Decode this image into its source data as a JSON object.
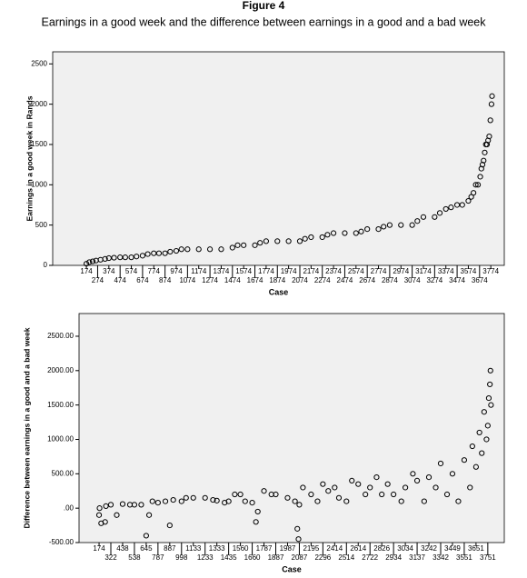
{
  "title": "Figure 4",
  "subtitle": "Earnings in a good week and the difference between earnings in a good and a bad week",
  "chart_data": [
    {
      "type": "scatter",
      "y_label": "Earnings in a good week in Rands",
      "x_label": "Case",
      "marker": "open-circle",
      "color": "#000000",
      "background": "#f0f0f0",
      "xlim": [
        -126,
        3894
      ],
      "ylim": [
        0,
        2650
      ],
      "xticks": [
        174,
        274,
        374,
        474,
        574,
        674,
        774,
        874,
        974,
        1074,
        1174,
        1274,
        1374,
        1474,
        1574,
        1674,
        1774,
        1874,
        1974,
        2074,
        2174,
        2274,
        2374,
        2474,
        2574,
        2674,
        2774,
        2874,
        2974,
        3074,
        3174,
        3274,
        3374,
        3474,
        3574,
        3674,
        3774
      ],
      "yticks": [
        0,
        500,
        1000,
        1500,
        2000,
        2500
      ],
      "x": [
        174,
        200,
        230,
        260,
        300,
        340,
        374,
        420,
        474,
        520,
        574,
        620,
        674,
        720,
        774,
        820,
        874,
        920,
        974,
        1020,
        1074,
        1174,
        1274,
        1374,
        1474,
        1520,
        1574,
        1674,
        1720,
        1774,
        1874,
        1974,
        2074,
        2120,
        2174,
        2274,
        2320,
        2374,
        2474,
        2574,
        2620,
        2674,
        2774,
        2820,
        2874,
        2974,
        3074,
        3120,
        3174,
        3274,
        3320,
        3374,
        3420,
        3474,
        3520,
        3574,
        3600,
        3620,
        3640,
        3660,
        3680,
        3690,
        3700,
        3710,
        3720,
        3730,
        3740,
        3750,
        3760,
        3770,
        3780,
        3785
      ],
      "values": [
        20,
        40,
        50,
        60,
        70,
        80,
        90,
        95,
        100,
        100,
        100,
        110,
        120,
        140,
        150,
        150,
        150,
        170,
        180,
        200,
        200,
        200,
        200,
        200,
        220,
        250,
        250,
        250,
        280,
        300,
        300,
        300,
        300,
        330,
        350,
        350,
        380,
        400,
        400,
        400,
        420,
        450,
        450,
        480,
        500,
        500,
        500,
        550,
        600,
        600,
        650,
        700,
        720,
        750,
        750,
        800,
        850,
        900,
        1000,
        1000,
        1100,
        1200,
        1250,
        1300,
        1400,
        1500,
        1500,
        1550,
        1600,
        1800,
        2000,
        2100
      ]
    },
    {
      "type": "scatter",
      "y_label": "Difference between earnings in a good and a bad week",
      "x_label": "Case",
      "marker": "open-circle",
      "color": "#000000",
      "background": "#f0f0f0",
      "xlim": [
        0,
        3900
      ],
      "ylim": [
        -500,
        2830
      ],
      "xticks": [
        174,
        322,
        438,
        538,
        645,
        787,
        887,
        998,
        1133,
        1233,
        1333,
        1435,
        1560,
        1660,
        1787,
        1887,
        1987,
        2087,
        2195,
        2296,
        2414,
        2514,
        2614,
        2722,
        2826,
        2934,
        3034,
        3137,
        3242,
        3342,
        3449,
        3551,
        3651,
        3751
      ],
      "yticks": [
        {
          "value": -500,
          "label": "-500.00"
        },
        {
          "value": 0,
          "label": ".00"
        },
        {
          "value": 500,
          "label": "500.00"
        },
        {
          "value": 1000,
          "label": "1000.00"
        },
        {
          "value": 1500,
          "label": "1500.00"
        },
        {
          "value": 2000,
          "label": "2000.00"
        },
        {
          "value": 2500,
          "label": "2500.00"
        }
      ],
      "x": [
        174,
        180,
        200,
        250,
        260,
        322,
        380,
        438,
        500,
        538,
        600,
        645,
        680,
        720,
        787,
        850,
        887,
        920,
        998,
        1050,
        1133,
        1233,
        1300,
        1333,
        1400,
        1435,
        1500,
        1560,
        1600,
        1660,
        1700,
        1720,
        1787,
        1850,
        1887,
        1987,
        2050,
        2070,
        2080,
        2087,
        2120,
        2195,
        2250,
        2296,
        2350,
        2414,
        2450,
        2514,
        2560,
        2614,
        2680,
        2722,
        2780,
        2826,
        2880,
        2934,
        3000,
        3034,
        3100,
        3137,
        3200,
        3242,
        3300,
        3342,
        3400,
        3449,
        3500,
        3551,
        3600,
        3620,
        3651,
        3680,
        3700,
        3720,
        3740,
        3751,
        3760,
        3770,
        3775,
        3780
      ],
      "values": [
        -100,
        0,
        -220,
        -200,
        30,
        50,
        -100,
        60,
        50,
        50,
        50,
        -400,
        -100,
        100,
        80,
        100,
        -250,
        120,
        100,
        150,
        150,
        150,
        120,
        110,
        80,
        100,
        200,
        200,
        100,
        80,
        -200,
        -50,
        250,
        200,
        200,
        150,
        100,
        -300,
        -450,
        50,
        300,
        200,
        100,
        350,
        250,
        300,
        150,
        100,
        400,
        350,
        200,
        300,
        450,
        200,
        350,
        200,
        100,
        300,
        500,
        400,
        100,
        450,
        300,
        650,
        200,
        500,
        100,
        700,
        300,
        900,
        600,
        1100,
        800,
        1400,
        1000,
        1200,
        1600,
        1800,
        2000,
        1500
      ]
    }
  ]
}
